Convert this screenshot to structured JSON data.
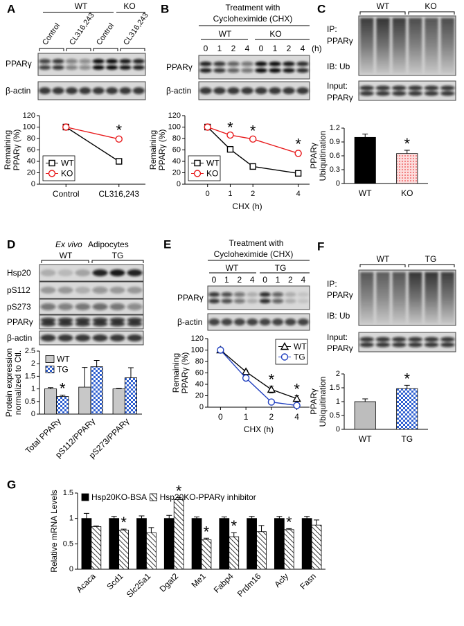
{
  "figure": {
    "A": {
      "label": "A",
      "groups": [
        "WT",
        "KO"
      ],
      "lanes": [
        "Control",
        "CL316,243",
        "Control",
        "CL316,243"
      ],
      "rows": [
        "PPARγ",
        "β-actin"
      ]
    },
    "B": {
      "label": "B",
      "header": [
        "Treatment with",
        "Cycloheximide (CHX)"
      ],
      "groups": [
        "WT",
        "KO"
      ],
      "lanes": [
        "0",
        "1",
        "2",
        "4",
        "0",
        "1",
        "2",
        "4"
      ],
      "lane_unit": "(h)",
      "rows": [
        "PPARγ",
        "β-actin"
      ]
    },
    "C": {
      "label": "C",
      "groups": [
        "WT",
        "KO"
      ],
      "rows": [
        "IP:",
        "PPARγ",
        "IB: Ub",
        "Input:",
        "PPARγ"
      ]
    },
    "D": {
      "label": "D",
      "header": [
        "Ex vivo",
        "Adipocytes"
      ],
      "groups": [
        "WT",
        "TG"
      ],
      "rows": [
        "Hsp20",
        "pS112",
        "pS273",
        "PPARγ",
        "β-actin"
      ]
    },
    "E": {
      "label": "E",
      "header": [
        "Treatment with",
        "Cycloheximide (CHX)"
      ],
      "groups": [
        "WT",
        "TG"
      ],
      "lanes": [
        "0",
        "1",
        "2",
        "4",
        "0",
        "1",
        "2",
        "4"
      ],
      "rows": [
        "PPARγ",
        "β-actin"
      ]
    },
    "F": {
      "label": "F",
      "groups": [
        "WT",
        "TG"
      ],
      "rows": [
        "IP:",
        "PPARγ",
        "IB: Ub",
        "Input:",
        "PPARγ"
      ]
    },
    "G": {
      "label": "G"
    }
  },
  "chart_data": [
    {
      "type": "line",
      "ylabel": [
        "Remaining",
        "PPARγ (%)"
      ],
      "categories": [
        "Control",
        "CL316,243"
      ],
      "series": [
        {
          "name": "WT",
          "color": "#000000",
          "marker": "square",
          "values": [
            100,
            40
          ],
          "errors": [
            0,
            3
          ]
        },
        {
          "name": "KO",
          "color": "#e8191b",
          "marker": "circle",
          "values": [
            100,
            79
          ],
          "errors": [
            0,
            4
          ]
        }
      ],
      "ylim": [
        0,
        120
      ],
      "yticks": [
        0,
        20,
        40,
        60,
        80,
        100,
        120
      ],
      "legend": "lower left",
      "legend_frame": true,
      "annotations": [
        {
          "text": "*",
          "category": "CL316,243"
        }
      ]
    },
    {
      "type": "line",
      "ylabel": [
        "Remaining",
        "PPARγ (%)"
      ],
      "xlabel": "CHX (h)",
      "x": [
        0,
        1,
        2,
        4
      ],
      "xlim": [
        -1,
        4.5
      ],
      "xticks": [
        0,
        1,
        2,
        4
      ],
      "series": [
        {
          "name": "WT",
          "color": "#000000",
          "marker": "square",
          "values": [
            100,
            61,
            31,
            19
          ],
          "errors": [
            0,
            2,
            3,
            4
          ]
        },
        {
          "name": "KO",
          "color": "#e8191b",
          "marker": "circle",
          "values": [
            100,
            86,
            79,
            54
          ],
          "errors": [
            0,
            2,
            3,
            5
          ]
        }
      ],
      "ylim": [
        0,
        120
      ],
      "yticks": [
        0,
        20,
        40,
        60,
        80,
        100,
        120
      ],
      "legend": "lower left",
      "legend_frame": true,
      "annotations": [
        {
          "text": "*",
          "x": 1
        },
        {
          "text": "*",
          "x": 2
        },
        {
          "text": "*",
          "x": 4
        }
      ]
    },
    {
      "type": "bar",
      "ylabel": [
        "PPARγ",
        "Ubiquitination"
      ],
      "categories": [
        "WT",
        "KO"
      ],
      "values": [
        1.0,
        0.65
      ],
      "errors": [
        0.07,
        0.07
      ],
      "colors": [
        "#000000",
        "#e8191b"
      ],
      "patterns": [
        "solid",
        "dots"
      ],
      "ylim": [
        0,
        1.2
      ],
      "yticks": [
        0,
        0.3,
        0.6,
        0.9,
        1.2
      ],
      "annotations": [
        {
          "text": "*",
          "category": "KO"
        }
      ]
    },
    {
      "type": "bar",
      "ylabel": [
        "Protein expression",
        "normalized to Ctl."
      ],
      "categories": [
        "Total PPARγ",
        "pS112/PPARγ",
        "pS273/PPARγ"
      ],
      "series": [
        {
          "name": "WT",
          "color": "#c8c8c8",
          "pattern": "solid",
          "values": [
            1.0,
            1.07,
            1.0
          ],
          "errors": [
            0.05,
            0.78,
            0.02
          ]
        },
        {
          "name": "TG",
          "color": "#2e5fd0",
          "pattern": "checker",
          "values": [
            0.7,
            1.88,
            1.44
          ],
          "errors": [
            0.05,
            0.25,
            0.4
          ]
        }
      ],
      "ylim": [
        0,
        2.5
      ],
      "yticks": [
        0,
        0.5,
        1,
        1.5,
        2,
        2.5
      ],
      "legend": "upper left",
      "legend_frame": false,
      "rotate_xticks": true,
      "annotations": [
        {
          "text": "*",
          "category": "Total PPARγ"
        }
      ]
    },
    {
      "type": "line",
      "ylabel": [
        "Remaining",
        "PPARγ (%)"
      ],
      "xlabel": "CHX (h)",
      "categories": [
        "0",
        "1",
        "2",
        "4"
      ],
      "series": [
        {
          "name": "WT",
          "color": "#000000",
          "marker": "triangle",
          "values": [
            100,
            62,
            31,
            15
          ],
          "errors": [
            0,
            3,
            6,
            5
          ]
        },
        {
          "name": "TG",
          "color": "#1f3fbf",
          "marker": "circle",
          "values": [
            100,
            51,
            9,
            3
          ],
          "errors": [
            0,
            2,
            2,
            2
          ]
        }
      ],
      "ylim": [
        0,
        120
      ],
      "yticks": [
        0,
        20,
        40,
        60,
        80,
        100,
        120
      ],
      "legend": "upper right",
      "legend_frame": true,
      "annotations": [
        {
          "text": "*",
          "category": "2"
        },
        {
          "text": "*",
          "category": "4"
        }
      ]
    },
    {
      "type": "bar",
      "ylabel": [
        "PPARγ",
        "Ubiquitination"
      ],
      "categories": [
        "WT",
        "TG"
      ],
      "values": [
        1.0,
        1.47
      ],
      "errors": [
        0.1,
        0.12
      ],
      "colors": [
        "#bdbdbd",
        "#2e5fd0"
      ],
      "patterns": [
        "solid",
        "checker"
      ],
      "ylim": [
        0,
        2
      ],
      "yticks": [
        0,
        0.5,
        1,
        1.5,
        2
      ],
      "annotations": [
        {
          "text": "*",
          "category": "TG"
        }
      ]
    },
    {
      "type": "bar",
      "ylabel": [
        "Relative mRNA Levels"
      ],
      "categories": [
        "Acaca",
        "Scd1",
        "Slc25a1",
        "Dgat2",
        "Me1",
        "Fabp4",
        "Prdm16",
        "Acly",
        "Fasn"
      ],
      "series": [
        {
          "name": "Hsp20KO-BSA",
          "color": "#000000",
          "pattern": "solid",
          "values": [
            1,
            1,
            1,
            1,
            1,
            1,
            1,
            1,
            1
          ],
          "errors": [
            0.1,
            0.04,
            0.05,
            0.06,
            0.03,
            0.03,
            0.04,
            0.04,
            0.04
          ]
        },
        {
          "name": "Hsp20KO-PPARγ inhibitor",
          "color": "#000000",
          "pattern": "hatch",
          "values": [
            0.84,
            0.77,
            0.72,
            1.37,
            0.58,
            0.64,
            0.74,
            0.78,
            0.87
          ],
          "errors": [
            0.01,
            0.02,
            0.1,
            0.04,
            0.03,
            0.08,
            0.12,
            0.02,
            0.1
          ]
        }
      ],
      "ylim": [
        0,
        1.5
      ],
      "yticks": [
        0,
        0.5,
        1,
        1.5
      ],
      "legend": "top",
      "legend_frame": false,
      "rotate_xticks": true,
      "annotations": [
        {
          "text": "*",
          "category": "Scd1"
        },
        {
          "text": "*",
          "category": "Dgat2"
        },
        {
          "text": "*",
          "category": "Me1"
        },
        {
          "text": "*",
          "category": "Fabp4"
        },
        {
          "text": "*",
          "category": "Acly"
        }
      ]
    }
  ]
}
